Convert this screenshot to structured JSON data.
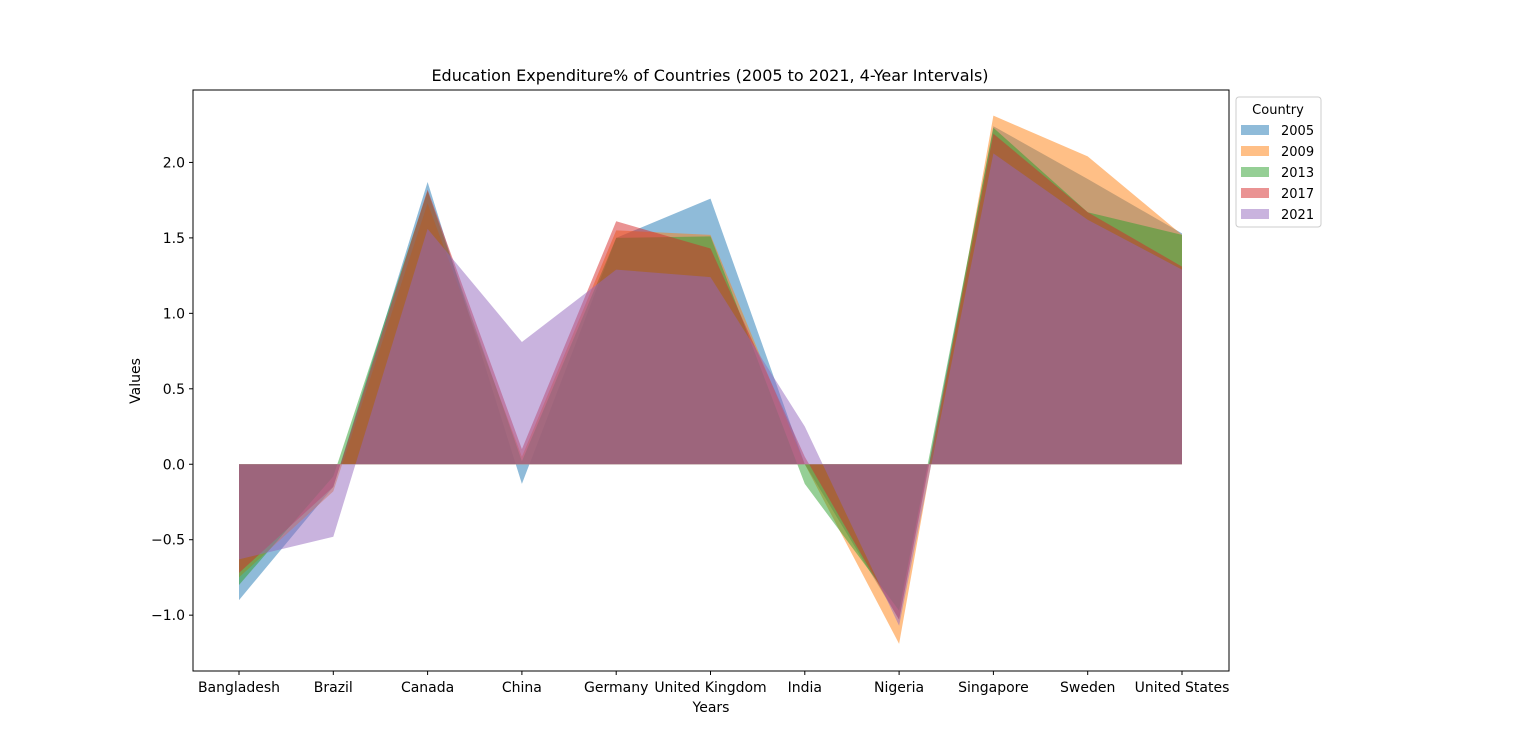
{
  "chart_data": {
    "type": "area",
    "title": "Education Expenditure% of Countries (2005 to 2021, 4-Year Intervals)",
    "xlabel": "Years",
    "ylabel": "Values",
    "categories": [
      "Bangladesh",
      "Brazil",
      "Canada",
      "China",
      "Germany",
      "United Kingdom",
      "India",
      "Nigeria",
      "Singapore",
      "Sweden",
      "United States"
    ],
    "ylim": [
      -1.37,
      2.48
    ],
    "yticks": [
      -1.0,
      -0.5,
      0.0,
      0.5,
      1.0,
      1.5,
      2.0
    ],
    "ytick_labels": [
      "−1.0",
      "−0.5",
      "0.0",
      "0.5",
      "1.0",
      "1.5",
      "2.0"
    ],
    "grid": false,
    "legend": {
      "title": "Country",
      "placement": "outside upper-right"
    },
    "series": [
      {
        "name": "2005",
        "color": "#1f77b4",
        "values": [
          -0.9,
          -0.15,
          1.87,
          -0.13,
          1.5,
          1.76,
          0.0,
          -1.03,
          2.24,
          1.89,
          1.53
        ]
      },
      {
        "name": "2009",
        "color": "#ff7f0e",
        "values": [
          -0.75,
          -0.18,
          1.73,
          0.05,
          1.55,
          1.52,
          0.0,
          -1.19,
          2.31,
          2.04,
          1.52
        ]
      },
      {
        "name": "2013",
        "color": "#2ca02c",
        "values": [
          -0.8,
          -0.08,
          1.81,
          0.02,
          1.5,
          1.51,
          -0.13,
          -0.97,
          2.23,
          1.67,
          1.52
        ]
      },
      {
        "name": "2017",
        "color": "#d62728",
        "values": [
          -0.72,
          -0.15,
          1.82,
          0.1,
          1.61,
          1.43,
          0.05,
          -1.03,
          2.19,
          1.67,
          1.31
        ]
      },
      {
        "name": "2021",
        "color": "#9467bd",
        "values": [
          -0.63,
          -0.48,
          1.56,
          0.81,
          1.29,
          1.24,
          0.25,
          -1.07,
          2.06,
          1.62,
          1.29
        ]
      }
    ]
  }
}
